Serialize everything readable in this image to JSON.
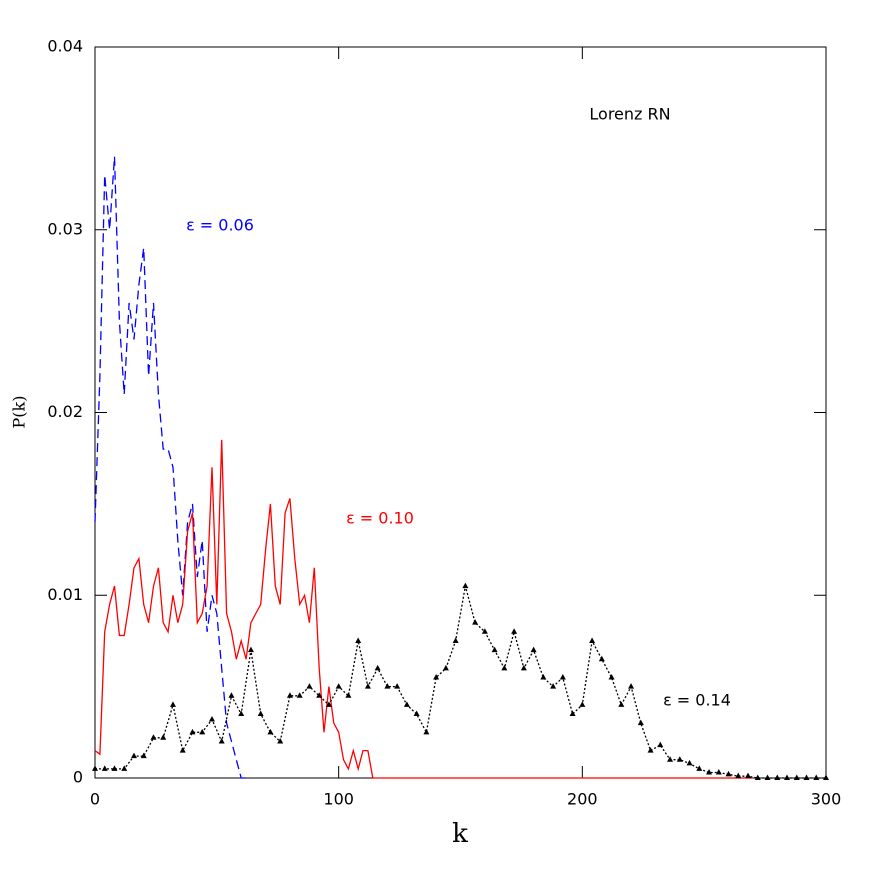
{
  "chart_data": {
    "type": "line",
    "annotation": "Lorenz RN",
    "x_label": "k",
    "y_label": "P(k)",
    "xlim": [
      0,
      300
    ],
    "ylim": [
      0,
      0.04
    ],
    "xticks": [
      0,
      100,
      200,
      300
    ],
    "yticks": [
      0,
      0.01,
      0.02,
      0.03,
      0.04
    ],
    "series": [
      {
        "name": "ε = 0.06",
        "color": "#0000ff",
        "style": "dashed",
        "x": [
          0,
          2,
          4,
          6,
          8,
          10,
          12,
          14,
          16,
          18,
          20,
          22,
          24,
          26,
          28,
          30,
          32,
          34,
          36,
          38,
          40,
          42,
          44,
          46,
          48,
          50,
          52,
          54,
          56,
          58,
          60,
          62,
          64
        ],
        "values": [
          0.014,
          0.022,
          0.033,
          0.03,
          0.034,
          0.025,
          0.021,
          0.026,
          0.024,
          0.027,
          0.029,
          0.022,
          0.026,
          0.021,
          0.018,
          0.018,
          0.017,
          0.013,
          0.01,
          0.014,
          0.015,
          0.011,
          0.013,
          0.008,
          0.01,
          0.009,
          0.006,
          0.003,
          0.002,
          0.001,
          0,
          0,
          0
        ]
      },
      {
        "name": "ε = 0.10",
        "color": "#ff0000",
        "style": "solid",
        "x": [
          0,
          2,
          4,
          6,
          8,
          10,
          12,
          14,
          16,
          18,
          20,
          22,
          24,
          26,
          28,
          30,
          32,
          34,
          36,
          38,
          40,
          42,
          44,
          46,
          48,
          50,
          52,
          54,
          56,
          58,
          60,
          62,
          64,
          66,
          68,
          70,
          72,
          74,
          76,
          78,
          80,
          82,
          84,
          86,
          88,
          90,
          92,
          94,
          96,
          98,
          100,
          102,
          104,
          106,
          108,
          110,
          112,
          114,
          120,
          270
        ],
        "values": [
          0.0015,
          0.0013,
          0.008,
          0.0095,
          0.0105,
          0.0078,
          0.0078,
          0.0095,
          0.0115,
          0.012,
          0.0095,
          0.0085,
          0.0105,
          0.0115,
          0.0085,
          0.008,
          0.01,
          0.0085,
          0.0095,
          0.0135,
          0.0145,
          0.0085,
          0.009,
          0.0105,
          0.017,
          0.0095,
          0.0185,
          0.009,
          0.008,
          0.0065,
          0.0075,
          0.0065,
          0.0085,
          0.009,
          0.0095,
          0.0125,
          0.015,
          0.0105,
          0.0095,
          0.0145,
          0.0153,
          0.012,
          0.0095,
          0.01,
          0.0085,
          0.0115,
          0.006,
          0.0025,
          0.005,
          0.003,
          0.0025,
          0.001,
          0.0005,
          0.0015,
          0.0005,
          0.0015,
          0.0015,
          0,
          0,
          0
        ]
      },
      {
        "name": "ε = 0.14",
        "color": "#000000",
        "style": "dotted",
        "markers": "triangle",
        "x": [
          0,
          4,
          8,
          12,
          16,
          20,
          24,
          28,
          32,
          36,
          40,
          44,
          48,
          52,
          56,
          60,
          64,
          68,
          72,
          76,
          80,
          84,
          88,
          92,
          96,
          100,
          104,
          108,
          112,
          116,
          120,
          124,
          128,
          132,
          136,
          140,
          144,
          148,
          152,
          156,
          160,
          164,
          168,
          172,
          176,
          180,
          184,
          188,
          192,
          196,
          200,
          204,
          208,
          212,
          216,
          220,
          224,
          228,
          232,
          236,
          240,
          244,
          248,
          252,
          256,
          260,
          264,
          268,
          272,
          276,
          280,
          284,
          288,
          292,
          296,
          300
        ],
        "values": [
          0.0005,
          0.0005,
          0.0005,
          0.0005,
          0.0012,
          0.0012,
          0.0022,
          0.0022,
          0.004,
          0.0015,
          0.0025,
          0.0025,
          0.0032,
          0.002,
          0.0045,
          0.0035,
          0.007,
          0.0035,
          0.0025,
          0.002,
          0.0045,
          0.0045,
          0.005,
          0.0045,
          0.004,
          0.005,
          0.0045,
          0.0075,
          0.005,
          0.006,
          0.005,
          0.005,
          0.004,
          0.0035,
          0.0025,
          0.0055,
          0.006,
          0.0075,
          0.0105,
          0.0085,
          0.008,
          0.007,
          0.006,
          0.008,
          0.006,
          0.007,
          0.0055,
          0.005,
          0.0055,
          0.0035,
          0.004,
          0.0075,
          0.0065,
          0.0055,
          0.004,
          0.005,
          0.003,
          0.0015,
          0.0018,
          0.001,
          0.001,
          0.0008,
          0.0005,
          0.0003,
          0.0003,
          0.0002,
          0.0001,
          0.0001,
          0,
          0,
          0,
          0,
          0,
          0,
          0,
          0
        ]
      }
    ]
  }
}
